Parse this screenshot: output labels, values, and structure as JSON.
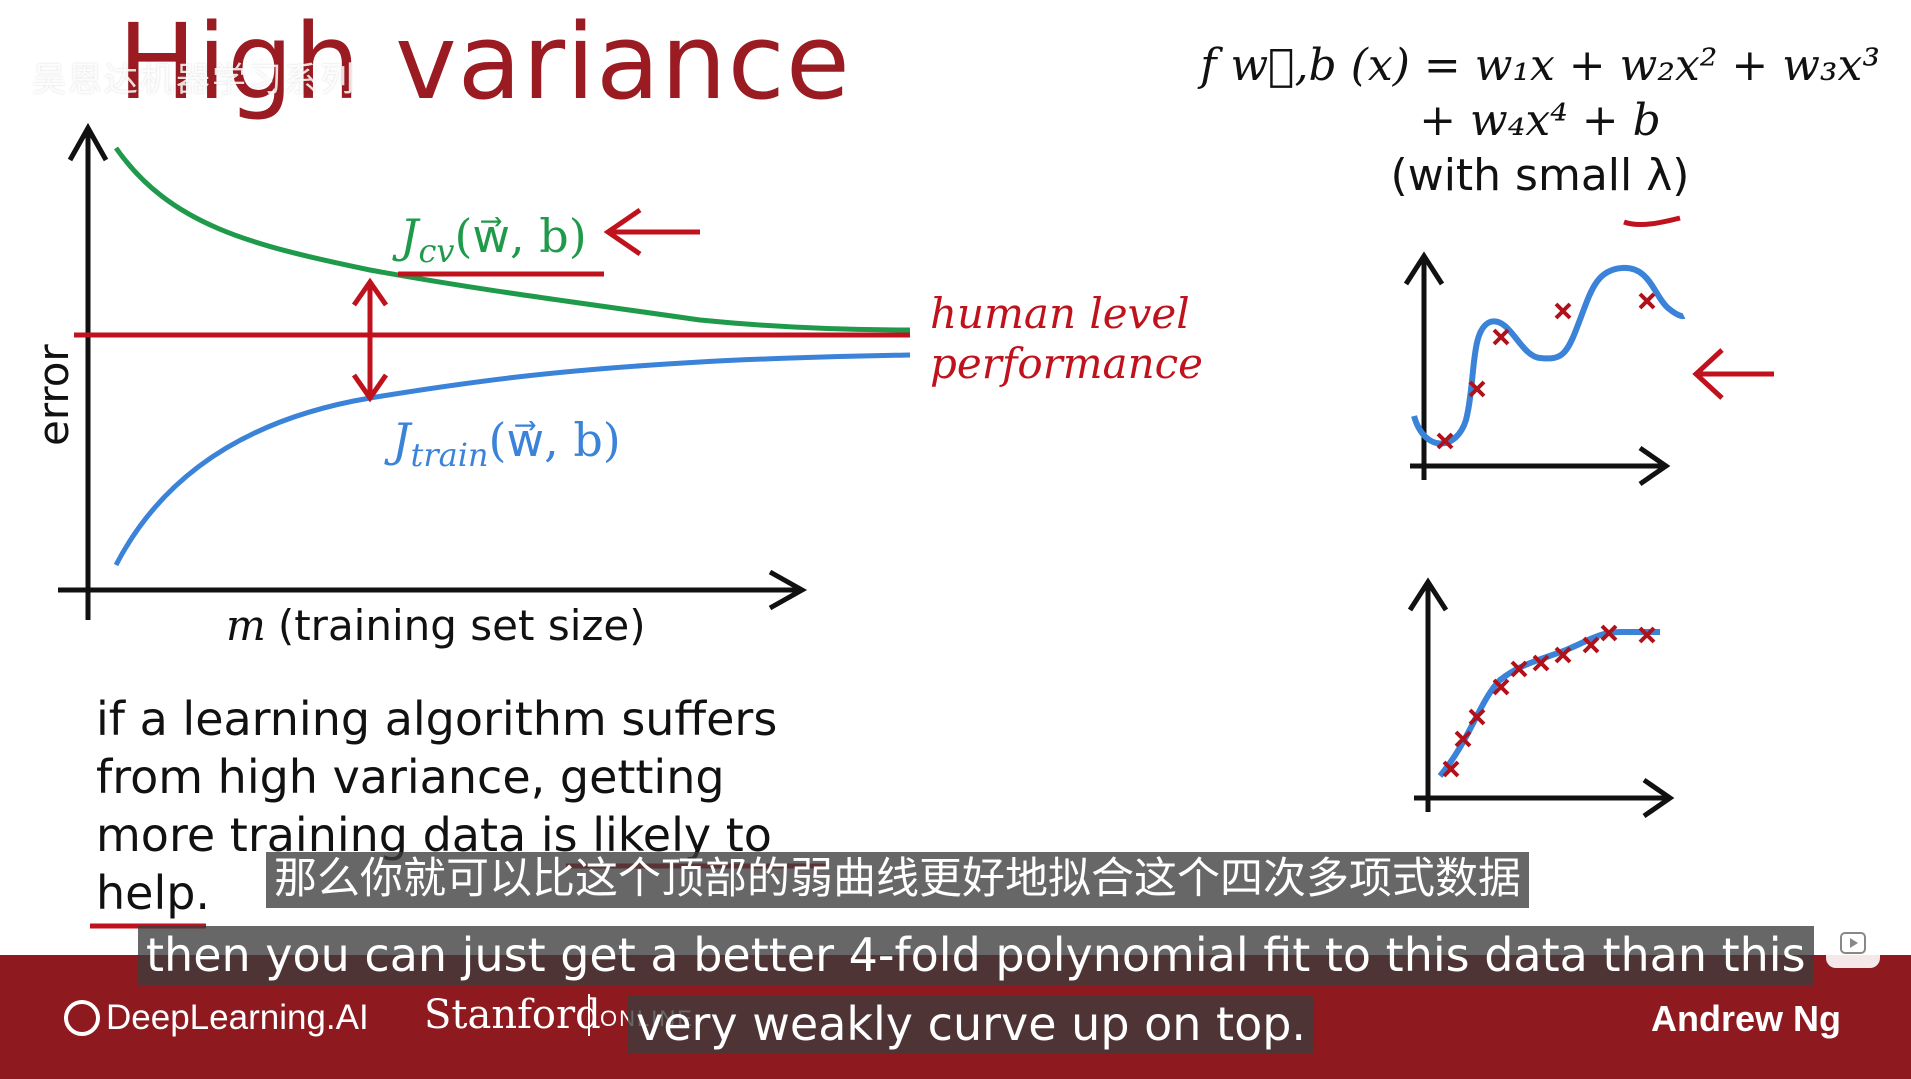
{
  "slide": {
    "title": "High variance",
    "watermark": "吴恩达机器学习系列",
    "main_plot": {
      "y_axis_label": "error",
      "x_axis_label_var": "m",
      "x_axis_label_text": "(training set size)",
      "jcv_label": "J",
      "jcv_sub": "cv",
      "jcv_args": "(w⃗, b)",
      "jtrain_label": "J",
      "jtrain_sub": "train",
      "jtrain_args": "(w⃗, b)",
      "human_level_line1": "human level",
      "human_level_line2": "performance"
    },
    "formula": {
      "line1": "f w⃗,b (x) = w₁x + w₂x² + w₃x³",
      "line2": "+ w₄x⁴ + b",
      "line3": "(with small λ)"
    },
    "note": "if a learning algorithm suffers from high variance, getting more training data is likely to help.",
    "colors": {
      "title": "#9a1b22",
      "cv": "#1e9a4a",
      "train": "#3a83d8",
      "human": "#c0121c",
      "footer": "#8e1a1f"
    }
  },
  "subtitles": {
    "zh": "那么你就可以比这个顶部的弱曲线更好地拟合这个四次多项式数据",
    "en_line1": "then you can just get a better 4-fold polynomial fit to this data than this",
    "en_line2": "very weakly curve up on top."
  },
  "footer": {
    "brand": "DeepLearning.AI",
    "university": "Stanford",
    "online": "ONLINE",
    "presenter": "Andrew Ng"
  },
  "controls": {
    "play_icon": "play-icon"
  }
}
